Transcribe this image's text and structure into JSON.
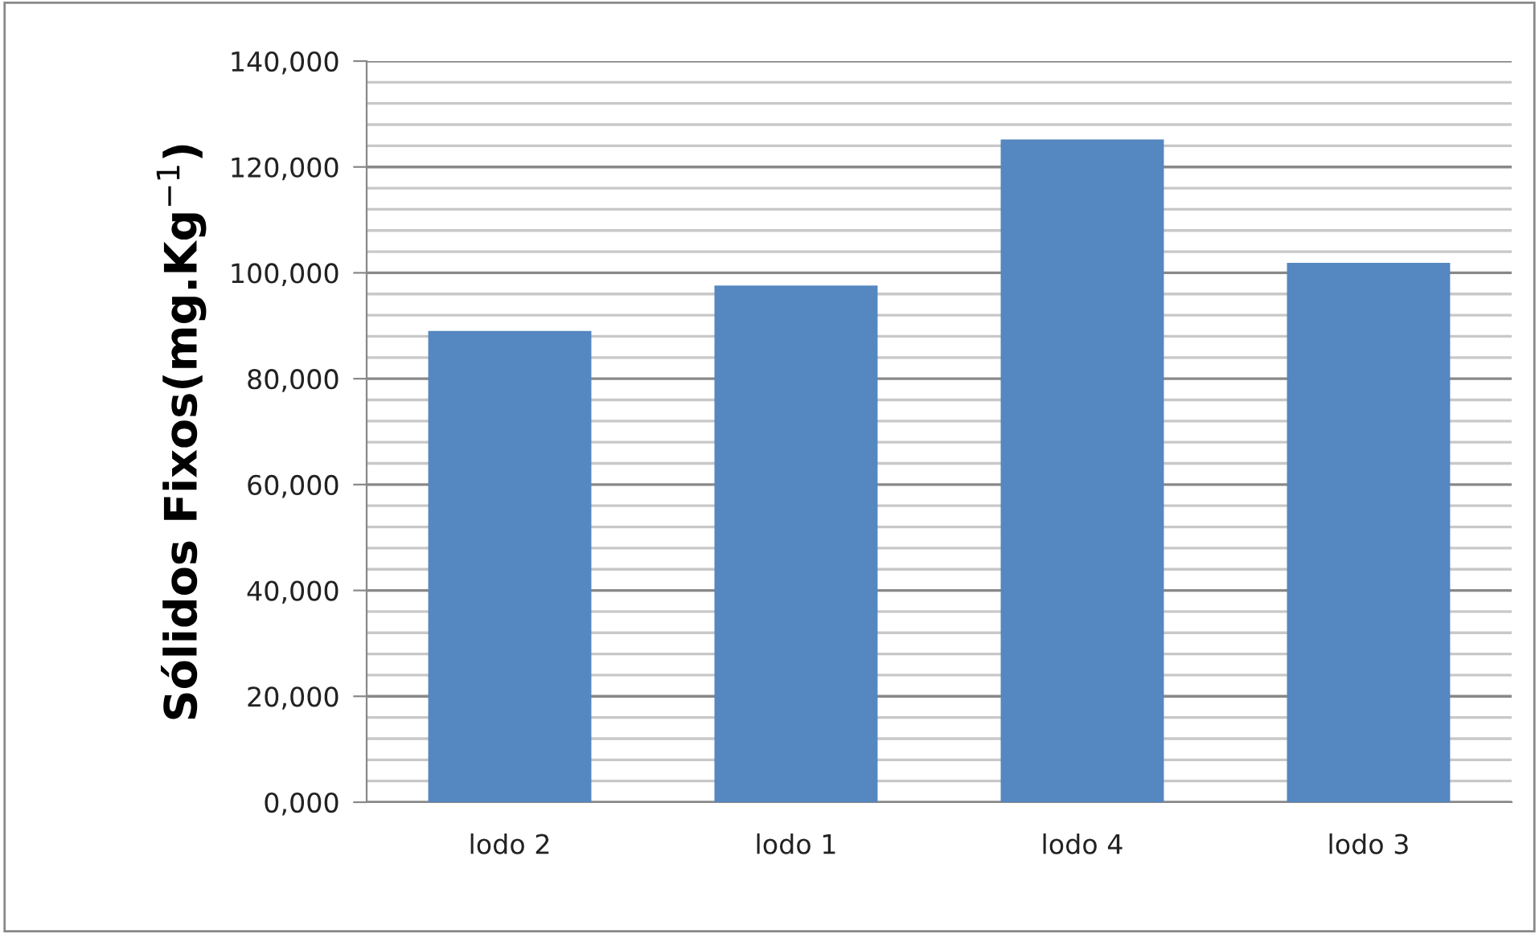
{
  "chart_data": {
    "type": "bar",
    "ylabel": "Sólidos Fixos(mg.Kg$^{−1}$)",
    "categories": [
      "lodo 2",
      "lodo 1",
      "lodo 4",
      "lodo 3"
    ],
    "values": [
      89000,
      97600,
      125200,
      101900
    ],
    "color": "#5587c0",
    "ylim": [
      0,
      140000
    ],
    "yticks": [
      {
        "value": 0,
        "label": "0,000"
      },
      {
        "value": 4000,
        "label": null
      },
      {
        "value": 8000,
        "label": null
      },
      {
        "value": 12000,
        "label": null
      },
      {
        "value": 16000,
        "label": null
      },
      {
        "value": 20000,
        "label": "20,000"
      },
      {
        "value": 24000,
        "label": null
      },
      {
        "value": 28000,
        "label": null
      },
      {
        "value": 32000,
        "label": null
      },
      {
        "value": 36000,
        "label": null
      },
      {
        "value": 40000,
        "label": "40,000"
      },
      {
        "value": 44000,
        "label": null
      },
      {
        "value": 48000,
        "label": null
      },
      {
        "value": 52000,
        "label": null
      },
      {
        "value": 56000,
        "label": null
      },
      {
        "value": 60000,
        "label": "60,000"
      },
      {
        "value": 64000,
        "label": null
      },
      {
        "value": 68000,
        "label": null
      },
      {
        "value": 72000,
        "label": null
      },
      {
        "value": 76000,
        "label": null
      },
      {
        "value": 80000,
        "label": "80,000"
      },
      {
        "value": 84000,
        "label": null
      },
      {
        "value": 88000,
        "label": null
      },
      {
        "value": 92000,
        "label": null
      },
      {
        "value": 96000,
        "label": null
      },
      {
        "value": 100000,
        "label": "100,000"
      },
      {
        "value": 104000,
        "label": null
      },
      {
        "value": 108000,
        "label": null
      },
      {
        "value": 112000,
        "label": null
      },
      {
        "value": 116000,
        "label": null
      },
      {
        "value": 120000,
        "label": "120,000"
      },
      {
        "value": 124000,
        "label": null
      },
      {
        "value": 128000,
        "label": null
      },
      {
        "value": 132000,
        "label": null
      },
      {
        "value": 136000,
        "label": null
      },
      {
        "value": 140000,
        "label": "140,000"
      }
    ],
    "grid": "y"
  }
}
